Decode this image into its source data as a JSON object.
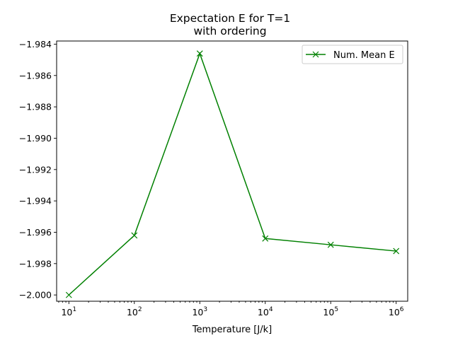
{
  "chart_data": {
    "type": "line",
    "title_lines": [
      "Expectation E for T=1",
      "with ordering"
    ],
    "xlabel": "Temperature [J/k]",
    "ylabel": "",
    "xscale": "log",
    "xlim": [
      6.5,
      1500000
    ],
    "ylim": [
      -2.0004,
      -1.9838
    ],
    "xticks": [
      {
        "value": 10,
        "base": "10",
        "exp": "1"
      },
      {
        "value": 100,
        "base": "10",
        "exp": "2"
      },
      {
        "value": 1000,
        "base": "10",
        "exp": "3"
      },
      {
        "value": 10000,
        "base": "10",
        "exp": "4"
      },
      {
        "value": 100000,
        "base": "10",
        "exp": "5"
      },
      {
        "value": 1000000,
        "base": "10",
        "exp": "6"
      }
    ],
    "yticks": [
      {
        "value": -2.0,
        "label": "−2.000"
      },
      {
        "value": -1.998,
        "label": "−1.998"
      },
      {
        "value": -1.996,
        "label": "−1.996"
      },
      {
        "value": -1.994,
        "label": "−1.994"
      },
      {
        "value": -1.992,
        "label": "−1.992"
      },
      {
        "value": -1.99,
        "label": "−1.990"
      },
      {
        "value": -1.988,
        "label": "−1.988"
      },
      {
        "value": -1.986,
        "label": "−1.986"
      },
      {
        "value": -1.984,
        "label": "−1.984"
      }
    ],
    "series": [
      {
        "name": "Num. Mean E",
        "color": "#008000",
        "marker": "x",
        "x": [
          10,
          100,
          1000,
          10000,
          100000,
          1000000
        ],
        "y": [
          -2.0,
          -1.9962,
          -1.9846,
          -1.9964,
          -1.9968,
          -1.9972
        ]
      }
    ],
    "legend": {
      "placement": "upper right"
    },
    "grid": false
  }
}
